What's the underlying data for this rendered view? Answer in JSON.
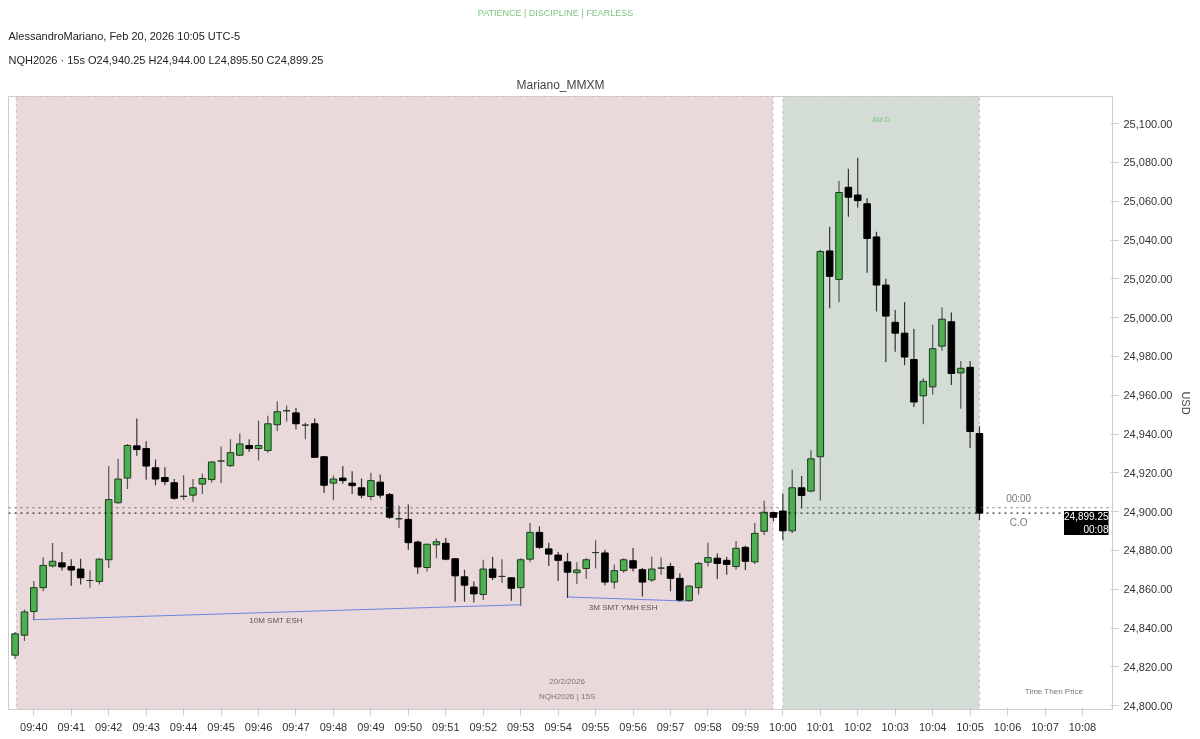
{
  "chart_data": {
    "type": "candlestick",
    "title": "Mariano_MMXM",
    "subtitle": "PATIENCE  |  DISCIPLINE  |  FEARLESS",
    "ylabel": "USD",
    "annotations": [
      "AlessandroMariano, Feb 20, 2026 10:05 UTC-5",
      "NQH2026 · 15s  O24,940.25  H24,944.00  L24,895.50  C24,899.25",
      {
        "text": "10M SMT ESH",
        "x": 9.77444,
        "y": 24847.7
      },
      {
        "text": "3M SMT YMH ESH",
        "x": 9.929,
        "y": 24854.4
      },
      "00:00",
      "C.O",
      "20/2/2026",
      "NQH2026 | 15S",
      "Time Then Price"
    ],
    "x": [
      9.65833,
      9.6625,
      9.66667,
      9.67083,
      9.675,
      9.67917,
      9.68333,
      9.6875,
      9.69167,
      9.69583,
      9.7,
      9.70417,
      9.70833,
      9.7125,
      9.71667,
      9.72083,
      9.725,
      9.72917,
      9.73333,
      9.7375,
      9.74167,
      9.74583,
      9.75,
      9.75417,
      9.75833,
      9.7625,
      9.76667,
      9.77083,
      9.775,
      9.77917,
      9.78333,
      9.7875,
      9.79167,
      9.79583,
      9.8,
      9.80417,
      9.80833,
      9.8125,
      9.81667,
      9.82083,
      9.825,
      9.82917,
      9.83333,
      9.8375,
      9.84167,
      9.84583,
      9.85,
      9.85417,
      9.85833,
      9.8625,
      9.86667,
      9.87083,
      9.875,
      9.87917,
      9.88333,
      9.8875,
      9.89167,
      9.89583,
      9.9,
      9.90417,
      9.90833,
      9.9125,
      9.91667,
      9.92083,
      9.925,
      9.92917,
      9.93333,
      9.9375,
      9.94167,
      9.94583,
      9.95,
      9.95417,
      9.95833,
      9.9625,
      9.96667,
      9.97083,
      9.975,
      9.97917,
      9.98333,
      9.9875,
      9.99167,
      9.99583,
      10.0,
      10.00417,
      10.00833,
      10.0125,
      10.01667,
      10.02083,
      10.025,
      10.02917,
      10.03333,
      10.0375,
      10.04167,
      10.04583,
      10.05,
      10.05417,
      10.05833,
      10.0625,
      10.06667,
      10.07083,
      10.075,
      10.07917,
      10.08333,
      10.0875
    ],
    "ohlc": [
      [
        24826,
        24838,
        24824,
        24837
      ],
      [
        24836.3,
        24849.6,
        24833.3,
        24848.3
      ],
      [
        24848.5,
        24864.3,
        24844,
        24860.8
      ],
      [
        24860.8,
        24876.5,
        24858.9,
        24872.3
      ],
      [
        24872,
        24883.8,
        24871.2,
        24874.4
      ],
      [
        24873.6,
        24879.2,
        24869.6,
        24871.5
      ],
      [
        24871.7,
        24875.5,
        24861.8,
        24869.9
      ],
      [
        24870.4,
        24875.7,
        24862.4,
        24865.9
      ],
      [
        24864.5,
        24869.6,
        24860.8,
        24864.5
      ],
      [
        24864,
        24876,
        24862.4,
        24875.5
      ],
      [
        24875.2,
        24923.5,
        24871,
        24906.2
      ],
      [
        24904.6,
        24927.2,
        24904,
        24916.8
      ],
      [
        24917.3,
        24934.9,
        24911.7,
        24934.1
      ],
      [
        24933.9,
        24948,
        24928.8,
        24932
      ],
      [
        24932.5,
        24936.3,
        24916.5,
        24923.5
      ],
      [
        24922.6,
        24926.9,
        24913.6,
        24916.8
      ],
      [
        24917.6,
        24922.9,
        24913.6,
        24915.5
      ],
      [
        24914.9,
        24916.8,
        24906.1,
        24906.9
      ],
      [
        24907.8,
        24918.7,
        24906.1,
        24908
      ],
      [
        24908.5,
        24916.8,
        24905.1,
        24912.3
      ],
      [
        24914.2,
        24919.5,
        24909.1,
        24917.1
      ],
      [
        24916.5,
        24926,
        24915,
        24925.6
      ],
      [
        24926.1,
        24933.6,
        24914.7,
        24926.1
      ],
      [
        24923.7,
        24937.3,
        24923,
        24930.4
      ],
      [
        24929.1,
        24940.3,
        24928.6,
        24934.9
      ],
      [
        24934.1,
        24937.3,
        24930.9,
        24932.5
      ],
      [
        24932.5,
        24946.9,
        24926.4,
        24934.1
      ],
      [
        24931.5,
        24949.4,
        24930.4,
        24945.3
      ],
      [
        24944.8,
        24956.8,
        24941.6,
        24951.5
      ],
      [
        24952,
        24954.7,
        24946.4,
        24952
      ],
      [
        24950.9,
        24953.6,
        24942.4,
        24945.3
      ],
      [
        24944.6,
        24945.9,
        24937.3,
        24944.6
      ],
      [
        24945.3,
        24948,
        24928,
        24928
      ],
      [
        24928.3,
        24928.5,
        24909.6,
        24913.6
      ],
      [
        24914.7,
        24918.7,
        24905.9,
        24916.8
      ],
      [
        24917.3,
        24923.5,
        24914.4,
        24916
      ],
      [
        24914.7,
        24920.8,
        24909.1,
        24913.4
      ],
      [
        24912.3,
        24917.1,
        24906.9,
        24908.5
      ],
      [
        24907.8,
        24920,
        24905.9,
        24916
      ],
      [
        24915.2,
        24919.2,
        24906.9,
        24908.5
      ],
      [
        24908.8,
        24909.6,
        24896.3,
        24897.1
      ],
      [
        24896.3,
        24903.2,
        24891.5,
        24896.3
      ],
      [
        24896,
        24903.7,
        24880.3,
        24884
      ],
      [
        24884.3,
        24885.1,
        24868,
        24871.5
      ],
      [
        24871.2,
        24883.5,
        24869.1,
        24883.2
      ],
      [
        24882.9,
        24886.1,
        24876,
        24884.5
      ],
      [
        24883.7,
        24886.4,
        24874.9,
        24875.5
      ],
      [
        24875.7,
        24876,
        24853.6,
        24866.9
      ],
      [
        24866.4,
        24870.1,
        24853.6,
        24862.1
      ],
      [
        24861.1,
        24864,
        24853.1,
        24857.6
      ],
      [
        24857.3,
        24875.2,
        24854.4,
        24870.4
      ],
      [
        24870.4,
        24876.8,
        24864.8,
        24866.1
      ],
      [
        24866.6,
        24875.5,
        24863.2,
        24866.6
      ],
      [
        24865.9,
        24866,
        24854.1,
        24860.5
      ],
      [
        24860.8,
        24876,
        24851.5,
        24875.2
      ],
      [
        24875.5,
        24894.1,
        24874,
        24889.3
      ],
      [
        24889.3,
        24892.5,
        24880.8,
        24881.6
      ],
      [
        24880.8,
        24884,
        24872,
        24878.1
      ],
      [
        24877.6,
        24879.2,
        24864.3,
        24874.9
      ],
      [
        24874.1,
        24878.7,
        24855.5,
        24868.8
      ],
      [
        24868.5,
        24873.9,
        24862.7,
        24869.9
      ],
      [
        24870.7,
        24876,
        24865.3,
        24875.2
      ],
      [
        24878.9,
        24885.3,
        24870.7,
        24878.9
      ],
      [
        24878.7,
        24880.3,
        24862,
        24863.7
      ],
      [
        24863.7,
        24872.8,
        24860.3,
        24869.6
      ],
      [
        24869.6,
        24876,
        24868.5,
        24875.2
      ],
      [
        24874.7,
        24881.3,
        24869.1,
        24870.9
      ],
      [
        24870.1,
        24871,
        24856.3,
        24863.7
      ],
      [
        24864.8,
        24876.8,
        24863.7,
        24870.4
      ],
      [
        24870.9,
        24876.3,
        24867.5,
        24870.9
      ],
      [
        24871.7,
        24873.6,
        24858.9,
        24865.6
      ],
      [
        24865.6,
        24868.3,
        24853.6,
        24854.4
      ],
      [
        24854.1,
        24862.1,
        24853.6,
        24861.6
      ],
      [
        24860.8,
        24874,
        24857.3,
        24873.3
      ],
      [
        24873.9,
        24884,
        24871.7,
        24876.3
      ],
      [
        24876,
        24878.4,
        24865.3,
        24873.3
      ],
      [
        24874.9,
        24876.8,
        24867.5,
        24872.8
      ],
      [
        24871.7,
        24884.8,
        24870,
        24881.1
      ],
      [
        24881.6,
        24882.4,
        24869.9,
        24874.4
      ],
      [
        24874.1,
        24894.1,
        24873,
        24888.8
      ],
      [
        24889.9,
        24905.6,
        24888,
        24899.7
      ],
      [
        24899.5,
        24900,
        24895,
        24897.1
      ],
      [
        24900.3,
        24909.3,
        24885.3,
        24890.1
      ],
      [
        24890.1,
        24921.6,
        24889,
        24912.3
      ],
      [
        24912.3,
        24918.4,
        24901.6,
        24908.3
      ],
      [
        24910.6,
        24931.7,
        24910,
        24927.2
      ],
      [
        24928.3,
        25035,
        24905.6,
        25034.1
      ],
      [
        25034.4,
        25046.9,
        25004.8,
        25021.3
      ],
      [
        25019.7,
        25070.4,
        25008,
        25064.5
      ],
      [
        25067.2,
        25076.8,
        25052,
        25062.1
      ],
      [
        25063.2,
        25082.4,
        25056.8,
        25060.3
      ],
      [
        25058.7,
        25061.6,
        25023.2,
        25040.8
      ],
      [
        25041.6,
        25044.3,
        25003.2,
        25016.8
      ],
      [
        25016.8,
        25020,
        24977.1,
        25000.8
      ],
      [
        24997.6,
        25004,
        24982.4,
        24992
      ],
      [
        24992,
        25008,
        24975.5,
        24979.7
      ],
      [
        24978.4,
        24994.1,
        24954,
        24956.5
      ],
      [
        24959.7,
        24968.8,
        24945.1,
        24967.2
      ],
      [
        24964.3,
        24996.3,
        24960.3,
        24984
      ],
      [
        24985.3,
        25005.3,
        24982.9,
        24999.2
      ],
      [
        24997.9,
        25002.7,
        24965.3,
        24971.2
      ],
      [
        24971.5,
        24977.6,
        24953.1,
        24973.9
      ],
      [
        24974.4,
        24977.6,
        24932.8,
        24941.3
      ],
      [
        24940.25,
        24944,
        24895.5,
        24899.25
      ]
    ],
    "series": [
      {
        "type": "line",
        "color": "#6b85e0",
        "x": [
          9.66667,
          9.8835
        ],
        "values": [
          24844.3,
          24852
        ]
      },
      {
        "type": "line",
        "color": "#6b85e0",
        "x": [
          9.9044,
          9.95716
        ],
        "values": [
          24856,
          24853.9
        ]
      }
    ],
    "bands": [
      {
        "axis": "x",
        "from": 9.65887,
        "to": 9.99567,
        "color": "#ead9da"
      },
      {
        "axis": "x",
        "from": 10.0,
        "to": 10.08745,
        "label": "AM D",
        "color": "#d3ddd6"
      }
    ],
    "ref_lines": [
      {
        "axis": "y",
        "value": 24902,
        "color": "#666666"
      },
      {
        "axis": "y",
        "value": 24899.25,
        "label": "24,899.25\n00:08",
        "color": "#000000"
      }
    ],
    "xlim": [
      9.6554,
      10.1467
    ],
    "ylim": [
      24798,
      25114
    ],
    "xticks": [
      {
        "value": 9.66667,
        "label": "09:40"
      },
      {
        "value": 9.68333,
        "label": "09:41"
      },
      {
        "value": 9.7,
        "label": "09:42"
      },
      {
        "value": 9.71667,
        "label": "09:43"
      },
      {
        "value": 9.73333,
        "label": "09:44"
      },
      {
        "value": 9.75,
        "label": "09:45"
      },
      {
        "value": 9.76667,
        "label": "09:46"
      },
      {
        "value": 9.78333,
        "label": "09:47"
      },
      {
        "value": 9.8,
        "label": "09:48"
      },
      {
        "value": 9.81667,
        "label": "09:49"
      },
      {
        "value": 9.83333,
        "label": "09:50"
      },
      {
        "value": 9.85,
        "label": "09:51"
      },
      {
        "value": 9.86667,
        "label": "09:52"
      },
      {
        "value": 9.88333,
        "label": "09:53"
      },
      {
        "value": 9.9,
        "label": "09:54"
      },
      {
        "value": 9.91667,
        "label": "09:55"
      },
      {
        "value": 9.93333,
        "label": "09:56"
      },
      {
        "value": 9.95,
        "label": "09:57"
      },
      {
        "value": 9.96667,
        "label": "09:58"
      },
      {
        "value": 9.98333,
        "label": "09:59"
      },
      {
        "value": 10.0,
        "label": "10:00"
      },
      {
        "value": 10.01667,
        "label": "10:01"
      },
      {
        "value": 10.03333,
        "label": "10:02"
      },
      {
        "value": 10.05,
        "label": "10:03"
      },
      {
        "value": 10.06667,
        "label": "10:04"
      },
      {
        "value": 10.08333,
        "label": "10:05"
      },
      {
        "value": 10.1,
        "label": "10:06"
      },
      {
        "value": 10.11667,
        "label": "10:07"
      },
      {
        "value": 10.13333,
        "label": "10:08"
      }
    ],
    "yticks": [
      {
        "value": 24800,
        "label": "24,800.00"
      },
      {
        "value": 24820,
        "label": "24,820.00"
      },
      {
        "value": 24840,
        "label": "24,840.00"
      },
      {
        "value": 24860,
        "label": "24,860.00"
      },
      {
        "value": 24880,
        "label": "24,880.00"
      },
      {
        "value": 24900,
        "label": "24,900.00"
      },
      {
        "value": 24920,
        "label": "24,920.00"
      },
      {
        "value": 24940,
        "label": "24,940.00"
      },
      {
        "value": 24960,
        "label": "24,960.00"
      },
      {
        "value": 24980,
        "label": "24,980.00"
      },
      {
        "value": 25000,
        "label": "25,000.00"
      },
      {
        "value": 25020,
        "label": "25,020.00"
      },
      {
        "value": 25040,
        "label": "25,040.00"
      },
      {
        "value": 25060,
        "label": "25,060.00"
      },
      {
        "value": 25080,
        "label": "25,080.00"
      },
      {
        "value": 25100,
        "label": "25,100.00"
      }
    ]
  }
}
